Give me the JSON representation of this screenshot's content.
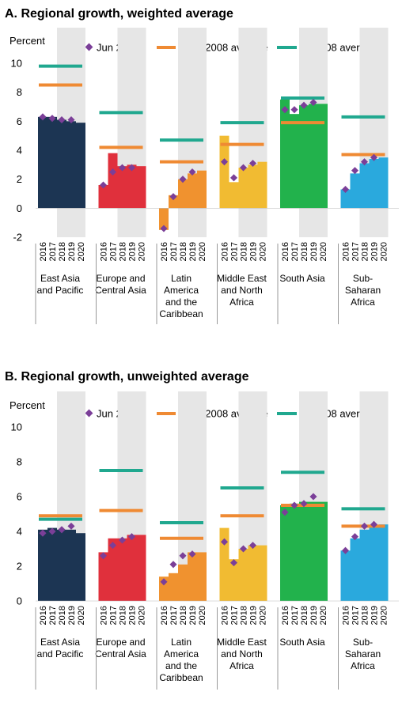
{
  "chart_data": [
    {
      "type": "bar",
      "title": "A. Regional growth, weighted average",
      "ylabel": "Percent",
      "ylim": [
        -2,
        10
      ],
      "yticks": [
        "-2",
        "0",
        "2",
        "4",
        "6",
        "8",
        "10"
      ],
      "years": [
        "2016",
        "2017",
        "2018",
        "2019",
        "2020"
      ],
      "legend": {
        "jun": "Jun 2017",
        "avg1": "1990-2008 average",
        "avg2": "2003-08 average"
      },
      "regions": [
        {
          "label": [
            "East Asia",
            "and Pacific"
          ],
          "color": "#1c3553",
          "values": [
            6.3,
            6.3,
            6.1,
            6.0,
            5.9
          ],
          "jun2017": [
            6.3,
            6.2,
            6.1,
            6.1
          ],
          "avg_1990_2008": 8.5,
          "avg_2003_08": 9.8
        },
        {
          "label": [
            "Europe and",
            "Central Asia"
          ],
          "color": "#e0303c",
          "values": [
            1.6,
            3.8,
            2.9,
            3.0,
            2.9
          ],
          "jun2017": [
            1.6,
            2.5,
            2.8,
            2.8
          ],
          "avg_1990_2008": 4.2,
          "avg_2003_08": 6.6
        },
        {
          "label": [
            "Latin",
            "America",
            "and the",
            "Caribbean"
          ],
          "color": "#f0922f",
          "values": [
            -1.5,
            0.9,
            2.0,
            2.4,
            2.6
          ],
          "jun2017": [
            -1.4,
            0.8,
            2.0,
            2.5
          ],
          "avg_1990_2008": 3.2,
          "avg_2003_08": 4.7
        },
        {
          "label": [
            "Middle East",
            "and North",
            "Africa"
          ],
          "color": "#f1bb32",
          "values": [
            5.0,
            1.8,
            2.8,
            3.0,
            3.2
          ],
          "jun2017": [
            3.2,
            2.1,
            2.8,
            3.1
          ],
          "avg_1990_2008": 4.4,
          "avg_2003_08": 5.9
        },
        {
          "label": [
            "South Asia"
          ],
          "color": "#22b24c",
          "values": [
            7.5,
            6.5,
            7.1,
            7.2,
            7.2
          ],
          "jun2017": [
            6.8,
            6.8,
            7.1,
            7.3
          ],
          "avg_1990_2008": 5.9,
          "avg_2003_08": 7.6
        },
        {
          "label": [
            "Sub-",
            "Saharan",
            "Africa"
          ],
          "color": "#2aa9dd",
          "values": [
            1.3,
            2.4,
            3.1,
            3.4,
            3.5
          ],
          "jun2017": [
            1.3,
            2.6,
            3.2,
            3.5
          ],
          "avg_1990_2008": 3.7,
          "avg_2003_08": 6.3
        }
      ]
    },
    {
      "type": "bar",
      "title": "B. Regional growth, unweighted average",
      "ylabel": "Percent",
      "ylim": [
        0,
        10
      ],
      "yticks": [
        "0",
        "2",
        "4",
        "6",
        "8",
        "10"
      ],
      "years": [
        "2016",
        "2017",
        "2018",
        "2019",
        "2020"
      ],
      "legend": {
        "jun": "Jun 2017",
        "avg1": "1990-2008 average",
        "avg2": "2003-08 average"
      },
      "regions": [
        {
          "label": [
            "East Asia",
            "and Pacific"
          ],
          "color": "#1c3553",
          "values": [
            4.1,
            4.2,
            4.1,
            4.1,
            3.9
          ],
          "jun2017": [
            3.9,
            4.0,
            4.1,
            4.3
          ],
          "avg_1990_2008": 4.9,
          "avg_2003_08": 4.7
        },
        {
          "label": [
            "Europe and",
            "Central Asia"
          ],
          "color": "#e0303c",
          "values": [
            2.8,
            3.6,
            3.6,
            3.8,
            3.8
          ],
          "jun2017": [
            2.6,
            3.2,
            3.5,
            3.7
          ],
          "avg_1990_2008": 5.2,
          "avg_2003_08": 7.5
        },
        {
          "label": [
            "Latin",
            "America",
            "and the",
            "Caribbean"
          ],
          "color": "#f0922f",
          "values": [
            1.4,
            1.6,
            2.1,
            2.8,
            2.8
          ],
          "jun2017": [
            1.1,
            2.1,
            2.6,
            2.7
          ],
          "avg_1990_2008": 3.6,
          "avg_2003_08": 4.5
        },
        {
          "label": [
            "Middle East",
            "and North",
            "Africa"
          ],
          "color": "#f1bb32",
          "values": [
            4.2,
            2.4,
            3.0,
            3.2,
            3.2
          ],
          "jun2017": [
            3.4,
            2.2,
            3.0,
            3.2
          ],
          "avg_1990_2008": 4.9,
          "avg_2003_08": 6.5
        },
        {
          "label": [
            "South Asia"
          ],
          "color": "#22b24c",
          "values": [
            5.5,
            5.6,
            5.7,
            5.7,
            5.7
          ],
          "jun2017": [
            5.1,
            5.5,
            5.6,
            6.0
          ],
          "avg_1990_2008": 5.5,
          "avg_2003_08": 7.4
        },
        {
          "label": [
            "Sub-",
            "Saharan",
            "Africa"
          ],
          "color": "#2aa9dd",
          "values": [
            2.9,
            3.6,
            4.1,
            4.3,
            4.4
          ],
          "jun2017": [
            2.9,
            3.7,
            4.3,
            4.4
          ],
          "avg_1990_2008": 4.3,
          "avg_2003_08": 5.3
        }
      ]
    }
  ],
  "colors": {
    "jun2017_marker": "#7b3f98",
    "avg_1990_2008": "#ef8a33",
    "avg_2003_08": "#20a88f",
    "forecast_shade": "#e6e6e6"
  }
}
